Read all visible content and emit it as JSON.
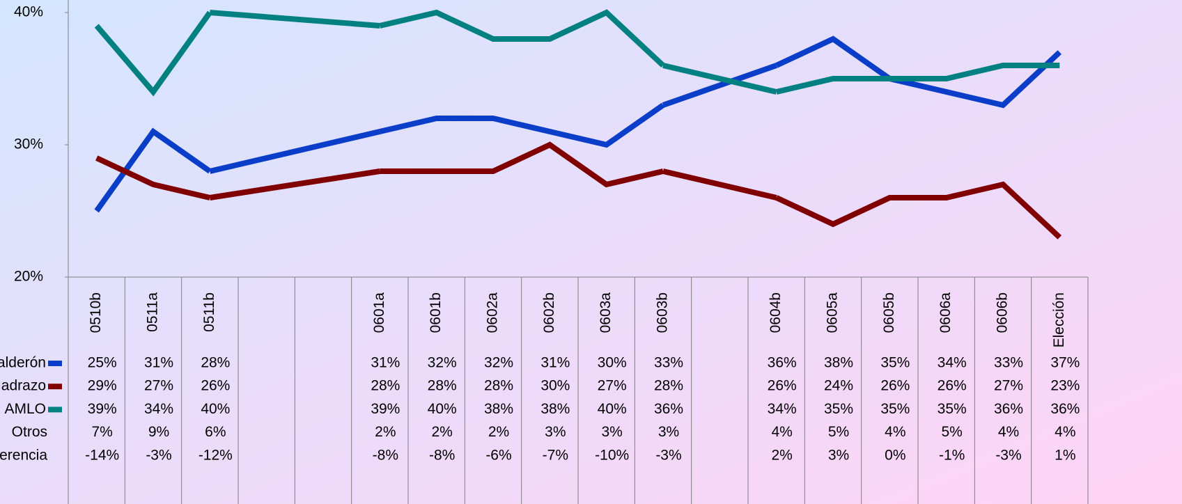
{
  "chart_data": {
    "type": "line",
    "categories": [
      "0510b",
      "0511a",
      "0511b",
      null,
      null,
      "0601a",
      "0601b",
      "0602a",
      "0602b",
      "0603a",
      "0603b",
      null,
      "0604b",
      "0605a",
      "0605b",
      "0606a",
      "0606b",
      "Elección"
    ],
    "series": [
      {
        "name": "Calderón",
        "color": "#0a3ec8",
        "values": [
          25,
          31,
          28,
          null,
          null,
          31,
          32,
          32,
          31,
          30,
          33,
          null,
          36,
          38,
          35,
          34,
          33,
          37
        ],
        "value_labels": [
          "25%",
          "31%",
          "28%",
          null,
          null,
          "31%",
          "32%",
          "32%",
          "31%",
          "30%",
          "33%",
          null,
          "36%",
          "38%",
          "35%",
          "34%",
          "33%",
          "37%"
        ]
      },
      {
        "name": "Madrazo",
        "color": "#800000",
        "values": [
          29,
          27,
          26,
          null,
          null,
          28,
          28,
          28,
          30,
          27,
          28,
          null,
          26,
          24,
          26,
          26,
          27,
          23
        ],
        "value_labels": [
          "29%",
          "27%",
          "26%",
          null,
          null,
          "28%",
          "28%",
          "28%",
          "30%",
          "27%",
          "28%",
          null,
          "26%",
          "24%",
          "26%",
          "26%",
          "27%",
          "23%"
        ]
      },
      {
        "name": "AMLO",
        "color": "#008080",
        "values": [
          39,
          34,
          40,
          null,
          null,
          39,
          40,
          38,
          38,
          40,
          36,
          null,
          34,
          35,
          35,
          35,
          36,
          36
        ],
        "value_labels": [
          "39%",
          "34%",
          "40%",
          null,
          null,
          "39%",
          "40%",
          "38%",
          "38%",
          "40%",
          "36%",
          null,
          "34%",
          "35%",
          "35%",
          "35%",
          "36%",
          "36%"
        ]
      }
    ],
    "table_series": [
      {
        "name": "Otros",
        "values": [
          7,
          9,
          6,
          null,
          null,
          2,
          2,
          2,
          3,
          3,
          3,
          null,
          4,
          5,
          4,
          5,
          4,
          4
        ],
        "value_labels": [
          "7%",
          "9%",
          "6%",
          null,
          null,
          "2%",
          "2%",
          "2%",
          "3%",
          "3%",
          "3%",
          null,
          "4%",
          "5%",
          "4%",
          "5%",
          "4%",
          "4%"
        ]
      },
      {
        "name": "Diferencia",
        "values": [
          -14,
          -3,
          -12,
          null,
          null,
          -8,
          -8,
          -6,
          -7,
          -10,
          -3,
          null,
          2,
          3,
          0,
          -1,
          -3,
          1
        ],
        "value_labels": [
          "-14%",
          "-3%",
          "-12%",
          null,
          null,
          "-8%",
          "-8%",
          "-6%",
          "-7%",
          "-10%",
          "-3%",
          null,
          "2%",
          "3%",
          "0%",
          "-1%",
          "-3%",
          "1%"
        ]
      }
    ],
    "ylim": [
      20,
      40
    ],
    "yticks": [
      {
        "value": 20,
        "label": "20%"
      },
      {
        "value": 30,
        "label": "30%"
      },
      {
        "value": 40,
        "label": "40%"
      }
    ],
    "grid": false,
    "connect_gaps": true
  }
}
